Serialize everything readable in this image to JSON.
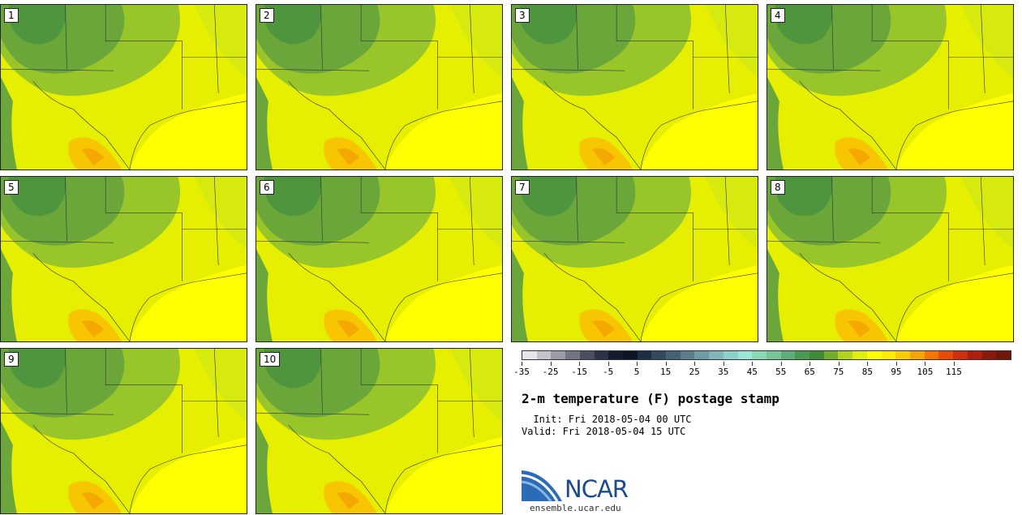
{
  "panels": [
    "1",
    "2",
    "3",
    "4",
    "5",
    "6",
    "7",
    "8",
    "9",
    "10"
  ],
  "colorbar": {
    "colors": [
      "#e6e6ec",
      "#c4c4cc",
      "#9a9aa8",
      "#727482",
      "#4a4e60",
      "#2c3348",
      "#141c30",
      "#0c1428",
      "#1e2e44",
      "#324a5e",
      "#446274",
      "#5a7e8c",
      "#6e9aa4",
      "#80b6bc",
      "#8ed0cc",
      "#9ae6d8",
      "#8ad8b4",
      "#78c496",
      "#5eae78",
      "#4a9a52",
      "#3e8c3a",
      "#72ae2c",
      "#b2d41e",
      "#e0ee0e",
      "#ffff00",
      "#ffea00",
      "#fccc00",
      "#f8a400",
      "#f47600",
      "#ea4c08",
      "#ce2e0c",
      "#b01e0c",
      "#8c1a0c",
      "#6e1608"
    ],
    "tick_labels": [
      "-35",
      "-25",
      "-15",
      "-5",
      "5",
      "15",
      "25",
      "35",
      "45",
      "55",
      "65",
      "75",
      "85",
      "95",
      "105",
      "115"
    ]
  },
  "title": "2-m temperature (F) postage stamp",
  "init_line": "  Init: Fri 2018-05-04 00 UTC",
  "valid_line": "Valid: Fri 2018-05-04 15 UTC",
  "logo_text": "NCAR",
  "site": "ensemble.ucar.edu"
}
